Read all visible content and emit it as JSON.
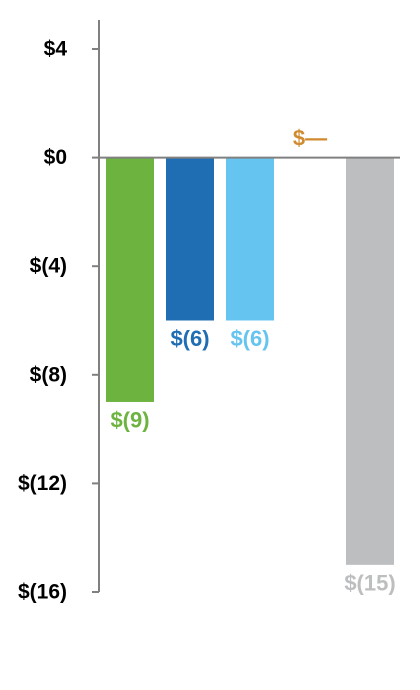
{
  "chart_data": {
    "type": "bar",
    "ylim": [
      -16,
      4
    ],
    "y_ticks": [
      4,
      0,
      -4,
      -8,
      -12,
      -16
    ],
    "y_tick_labels": [
      "$4",
      "$0",
      "$(4)",
      "$(8)",
      "$(12)",
      "$(16)"
    ],
    "grid": false,
    "legend": "none",
    "bars": [
      {
        "value": -9,
        "label": "$(9)",
        "color": "#6db33f"
      },
      {
        "value": -6,
        "label": "$(6)",
        "color": "#1f6db3"
      },
      {
        "value": -6,
        "label": "$(6)",
        "color": "#66c4f0"
      },
      {
        "value": 0,
        "label": "$—",
        "color": "#d08a2f"
      },
      {
        "value": -15,
        "label": "$(15)",
        "color": "#bdbec0"
      }
    ],
    "axis_color": "#808080"
  }
}
